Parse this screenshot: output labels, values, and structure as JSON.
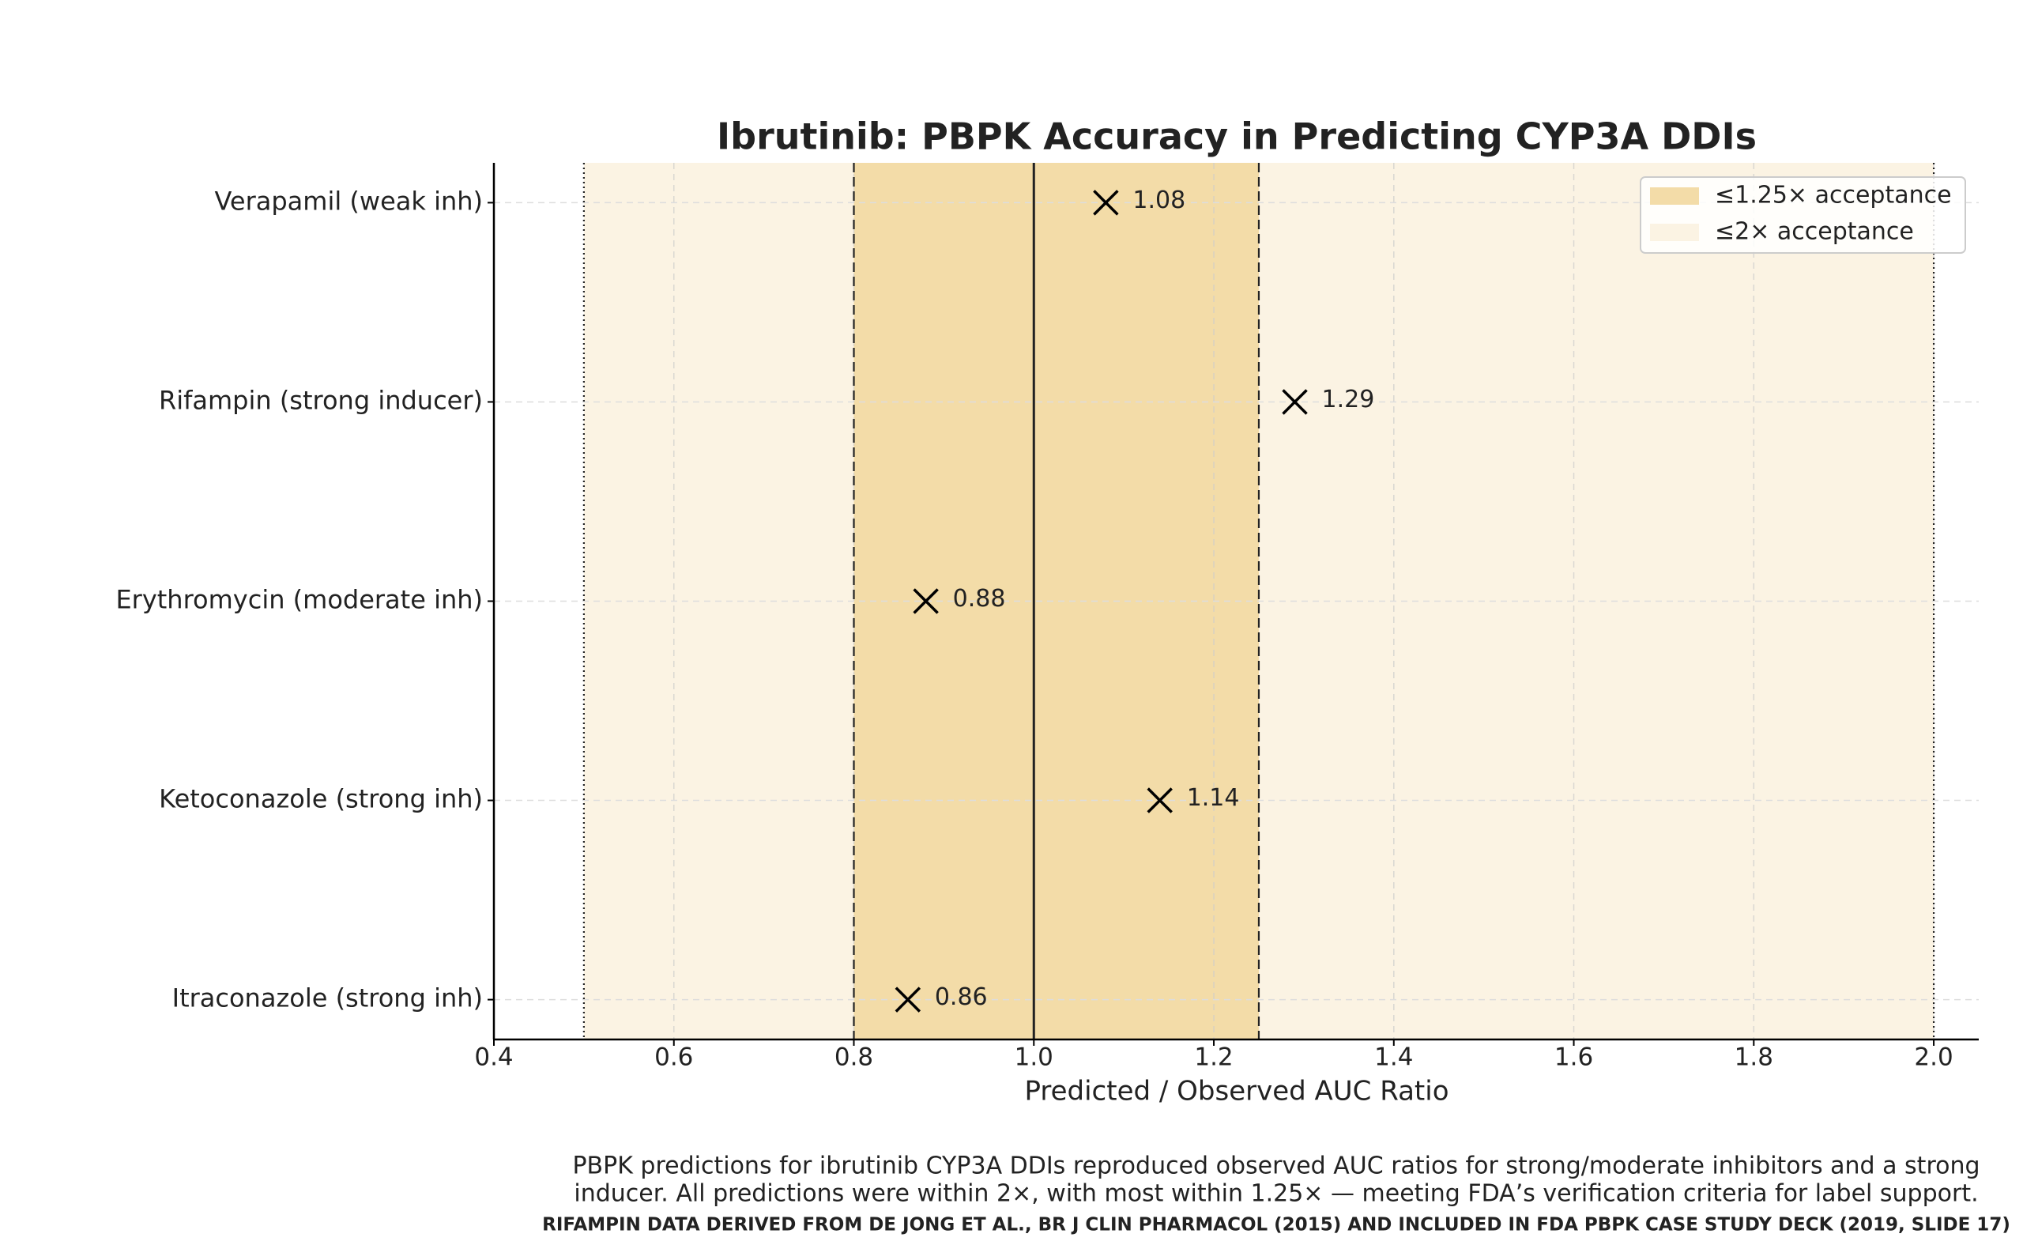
{
  "chart_data": {
    "type": "dot",
    "title": "Ibrutinib: PBPK Accuracy in Predicting CYP3A DDIs",
    "x_label": "Predicted / Observed AUC Ratio",
    "categories": [
      "Verapamil (weak inh)",
      "Rifampin (strong inducer)",
      "Erythromycin (moderate inh)",
      "Ketoconazole (strong inh)",
      "Itraconazole (strong inh)"
    ],
    "values": [
      1.08,
      1.29,
      0.88,
      1.14,
      0.86
    ],
    "color": "#000000",
    "xlim": [
      0.4,
      2.05
    ],
    "xticks": [
      {
        "value": 0.4,
        "label": "0.4"
      },
      {
        "value": 0.6,
        "label": "0.6"
      },
      {
        "value": 0.8,
        "label": "0.8"
      },
      {
        "value": 1.0,
        "label": "1.0"
      },
      {
        "value": 1.2,
        "label": "1.2"
      },
      {
        "value": 1.4,
        "label": "1.4"
      },
      {
        "value": 1.6,
        "label": "1.6"
      },
      {
        "value": 1.8,
        "label": "1.8"
      },
      {
        "value": 2.0,
        "label": "2.0"
      }
    ],
    "bands": [
      {
        "name": "≤2× acceptance",
        "range": [
          0.5,
          2.0
        ],
        "color": "#fbf3e3"
      },
      {
        "name": "≤1.25× acceptance",
        "range": [
          0.8,
          1.25
        ],
        "color": "#f3dca8"
      }
    ],
    "reference_lines": [
      {
        "value": 0.5,
        "style": "dotted"
      },
      {
        "value": 2.0,
        "style": "dotted"
      },
      {
        "value": 0.8,
        "style": "dashed"
      },
      {
        "value": 1.25,
        "style": "dashed"
      },
      {
        "value": 1.0,
        "style": "solid"
      }
    ],
    "grid": true,
    "legend": "upper right",
    "caption": [
      "PBPK predictions for ibrutinib CYP3A DDIs reproduced observed AUC ratios for strong/moderate inhibitors and a strong",
      "inducer. All predictions were within 2×, with most within 1.25× — meeting FDA’s verification criteria for label support."
    ],
    "source": "RIFAMPIN DATA DERIVED FROM DE JONG ET AL., BR J CLIN PHARMACOL (2015) AND INCLUDED IN FDA PBPK CASE STUDY DECK (2019, SLIDE 17)"
  }
}
